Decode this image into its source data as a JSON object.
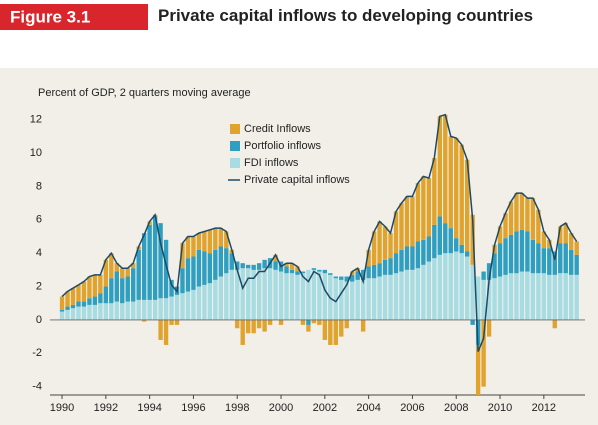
{
  "chart_data": {
    "type": "bar",
    "figure_label": "Figure 3.1",
    "title": "Private capital inflows to developing countries",
    "subtitle": "Percent of GDP, 2 quarters moving average",
    "stacked": true,
    "x": [
      1990,
      1990.25,
      1990.5,
      1990.75,
      1991,
      1991.25,
      1991.5,
      1991.75,
      1992,
      1992.25,
      1992.5,
      1992.75,
      1993,
      1993.25,
      1993.5,
      1993.75,
      1994,
      1994.25,
      1994.5,
      1994.75,
      1995,
      1995.25,
      1995.5,
      1995.75,
      1996,
      1996.25,
      1996.5,
      1996.75,
      1997,
      1997.25,
      1997.5,
      1997.75,
      1998,
      1998.25,
      1998.5,
      1998.75,
      1999,
      1999.25,
      1999.5,
      1999.75,
      2000,
      2000.25,
      2000.5,
      2000.75,
      2001,
      2001.25,
      2001.5,
      2001.75,
      2002,
      2002.25,
      2002.5,
      2002.75,
      2003,
      2003.25,
      2003.5,
      2003.75,
      2004,
      2004.25,
      2004.5,
      2004.75,
      2005,
      2005.25,
      2005.5,
      2005.75,
      2006,
      2006.25,
      2006.5,
      2006.75,
      2007,
      2007.25,
      2007.5,
      2007.75,
      2008,
      2008.25,
      2008.5,
      2008.75,
      2009,
      2009.25,
      2009.5,
      2009.75,
      2010,
      2010.25,
      2010.5,
      2010.75,
      2011,
      2011.25,
      2011.5,
      2011.75,
      2012,
      2012.25,
      2012.5,
      2012.75,
      2013,
      2013.25,
      2013.5
    ],
    "series": [
      {
        "name": "FDI inflows",
        "color": "#a8dce3",
        "values": [
          0.5,
          0.6,
          0.7,
          0.8,
          0.8,
          0.9,
          0.9,
          1.0,
          1.0,
          1.0,
          1.1,
          1.0,
          1.1,
          1.1,
          1.2,
          1.2,
          1.2,
          1.2,
          1.3,
          1.3,
          1.4,
          1.5,
          1.6,
          1.7,
          1.8,
          2.0,
          2.1,
          2.2,
          2.4,
          2.6,
          2.8,
          3.0,
          3.0,
          3.1,
          3.1,
          3.0,
          3.0,
          3.1,
          3.1,
          3.0,
          2.9,
          2.8,
          2.8,
          2.7,
          2.8,
          3.0,
          3.0,
          2.9,
          2.8,
          2.7,
          2.5,
          2.4,
          2.3,
          2.3,
          2.4,
          2.4,
          2.5,
          2.5,
          2.6,
          2.7,
          2.7,
          2.8,
          2.9,
          3.0,
          3.0,
          3.1,
          3.3,
          3.5,
          3.7,
          3.9,
          4.0,
          4.0,
          4.1,
          4.0,
          3.8,
          3.3,
          2.6,
          2.4,
          2.4,
          2.5,
          2.6,
          2.7,
          2.8,
          2.8,
          2.9,
          2.9,
          2.8,
          2.8,
          2.8,
          2.7,
          2.7,
          2.8,
          2.8,
          2.7,
          2.7
        ]
      },
      {
        "name": "Portfolio inflows",
        "color": "#2e9fc0",
        "values": [
          0.1,
          0.2,
          0.2,
          0.3,
          0.3,
          0.4,
          0.5,
          0.6,
          1.0,
          1.5,
          1.8,
          1.5,
          1.5,
          2.0,
          3.0,
          4.0,
          4.5,
          5.0,
          4.5,
          3.5,
          1.0,
          0.5,
          1.5,
          2.0,
          2.0,
          2.2,
          2.0,
          1.8,
          1.8,
          1.8,
          1.5,
          1.0,
          0.5,
          0.3,
          0.2,
          0.3,
          0.4,
          0.5,
          0.6,
          0.5,
          0.6,
          0.4,
          0.2,
          0.2,
          0.1,
          -0.3,
          0.1,
          0.1,
          0.2,
          0.1,
          0.1,
          0.2,
          0.3,
          0.4,
          0.5,
          0.6,
          0.7,
          0.8,
          0.8,
          0.9,
          1.0,
          1.2,
          1.3,
          1.4,
          1.4,
          1.6,
          1.5,
          1.5,
          2.0,
          2.3,
          1.8,
          1.5,
          0.8,
          0.5,
          0.3,
          -0.3,
          -1.5,
          0.5,
          1.0,
          1.5,
          2.0,
          2.2,
          2.3,
          2.5,
          2.5,
          2.4,
          2.0,
          1.8,
          1.5,
          1.6,
          1.4,
          1.8,
          1.8,
          1.5,
          1.2
        ]
      },
      {
        "name": "Credit Inflows",
        "color": "#e0a32e",
        "values": [
          0.8,
          0.9,
          1.0,
          1.0,
          1.2,
          1.3,
          1.3,
          1.1,
          1.6,
          1.5,
          0.5,
          0.6,
          0.5,
          0.3,
          0.2,
          -0.1,
          0.2,
          0.1,
          -1.2,
          -1.5,
          -0.3,
          -0.3,
          1.5,
          1.3,
          1.2,
          1.0,
          1.2,
          1.4,
          1.3,
          1.1,
          1.0,
          0.2,
          -0.5,
          -1.5,
          -0.8,
          -0.8,
          -0.5,
          -0.7,
          -0.3,
          0.4,
          -0.3,
          0.2,
          0.4,
          0.3,
          -0.3,
          -0.4,
          -0.2,
          -0.3,
          -1.2,
          -1.5,
          -1.5,
          -1.0,
          -0.5,
          0.2,
          0.2,
          -0.7,
          1.0,
          2.0,
          2.5,
          2.0,
          1.5,
          2.5,
          2.8,
          3.0,
          3.0,
          3.5,
          3.8,
          3.5,
          4.0,
          6.0,
          6.5,
          5.5,
          6.0,
          6.0,
          5.5,
          3.0,
          -3.0,
          -4.0,
          -1.0,
          0.5,
          1.0,
          1.5,
          2.0,
          2.3,
          2.2,
          2.0,
          2.5,
          2.0,
          1.0,
          0.5,
          -0.5,
          1.0,
          1.2,
          1.0,
          0.8
        ]
      },
      {
        "name": "Private capital inflows",
        "color": "#1d4a66",
        "type": "line",
        "values": [
          1.4,
          1.7,
          1.9,
          2.1,
          2.3,
          2.6,
          2.7,
          2.7,
          3.6,
          4.0,
          3.4,
          3.1,
          3.1,
          3.4,
          4.4,
          5.1,
          5.9,
          6.3,
          4.6,
          3.3,
          2.1,
          1.7,
          4.6,
          5.0,
          5.0,
          5.2,
          5.3,
          5.4,
          5.5,
          5.5,
          5.3,
          4.2,
          3.0,
          1.9,
          2.5,
          2.5,
          2.9,
          2.9,
          3.4,
          3.9,
          3.2,
          3.4,
          3.4,
          3.2,
          2.6,
          2.3,
          2.9,
          2.7,
          1.8,
          1.3,
          1.1,
          1.6,
          2.1,
          2.9,
          3.1,
          2.3,
          4.2,
          5.3,
          5.9,
          5.6,
          5.2,
          6.5,
          7.0,
          7.4,
          7.4,
          8.2,
          8.6,
          8.5,
          9.7,
          12.2,
          12.3,
          11.0,
          10.9,
          10.5,
          9.6,
          6.0,
          -1.9,
          -1.1,
          2.4,
          4.5,
          5.6,
          6.4,
          7.1,
          7.6,
          7.6,
          7.3,
          7.3,
          6.6,
          5.3,
          4.8,
          3.6,
          5.6,
          5.8,
          5.2,
          4.7
        ]
      }
    ],
    "legend_order": [
      2,
      1,
      0,
      3
    ],
    "xlim": [
      1989.45,
      2013.88
    ],
    "xticks": [
      1990,
      1992,
      1994,
      1996,
      1998,
      2000,
      2002,
      2004,
      2006,
      2008,
      2010,
      2012
    ],
    "ylim": [
      -4.5,
      13
    ],
    "yticks": [
      -4,
      -2,
      0,
      2,
      4,
      6,
      8,
      10,
      12
    ],
    "grid": false
  }
}
